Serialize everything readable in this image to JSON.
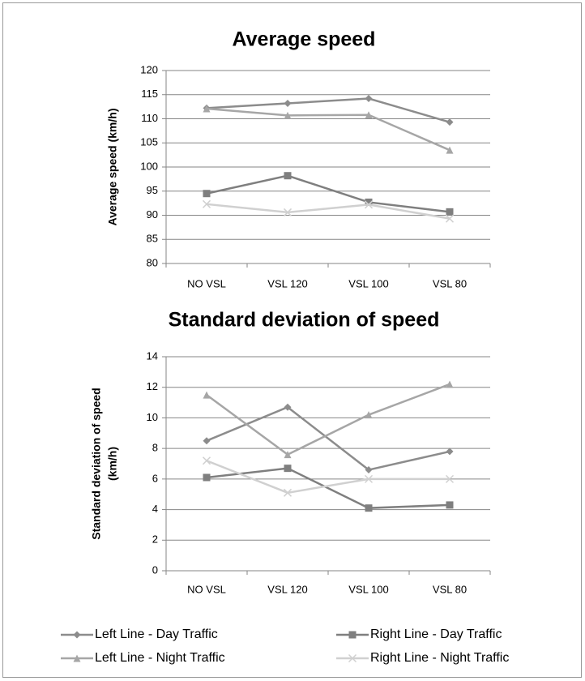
{
  "chart_data": [
    {
      "type": "line",
      "title": "Average speed",
      "ylabel": [
        "Average speed (km/h)"
      ],
      "categories": [
        "NO VSL",
        "VSL 120",
        "VSL 100",
        "VSL 80"
      ],
      "ylim": [
        80,
        120
      ],
      "yticks": [
        80,
        85,
        90,
        95,
        100,
        105,
        110,
        115,
        120
      ],
      "grid": true,
      "series": [
        {
          "name": "Left Line - Day Traffic",
          "color": "#8c8c8c",
          "marker": "diamond",
          "values": [
            112.2,
            113.2,
            114.2,
            109.3
          ]
        },
        {
          "name": "Right Line - Day Traffic",
          "color": "#7f7f7f",
          "marker": "square",
          "values": [
            94.5,
            98.2,
            92.7,
            90.7
          ]
        },
        {
          "name": "Left Line - Night Traffic",
          "color": "#a6a6a6",
          "marker": "triangle",
          "values": [
            112.1,
            110.7,
            110.8,
            103.5
          ]
        },
        {
          "name": "Right Line - Night Traffic",
          "color": "#d0d0d0",
          "marker": "x",
          "values": [
            92.3,
            90.6,
            92.2,
            89.3
          ]
        }
      ]
    },
    {
      "type": "line",
      "title": "Standard deviation of speed",
      "ylabel": [
        "Standard deviation of speed",
        "(km/h)"
      ],
      "categories": [
        "NO VSL",
        "VSL 120",
        "VSL 100",
        "VSL 80"
      ],
      "ylim": [
        0,
        14
      ],
      "yticks": [
        0,
        2,
        4,
        6,
        8,
        10,
        12,
        14
      ],
      "grid": true,
      "series": [
        {
          "color": "#8c8c8c",
          "marker": "diamond",
          "values": [
            8.5,
            10.7,
            6.6,
            7.8
          ]
        },
        {
          "color": "#7f7f7f",
          "marker": "square",
          "values": [
            6.1,
            6.7,
            4.1,
            4.3
          ]
        },
        {
          "color": "#a6a6a6",
          "marker": "triangle",
          "values": [
            11.5,
            7.6,
            10.2,
            12.2
          ]
        },
        {
          "color": "#d0d0d0",
          "marker": "x",
          "values": [
            7.2,
            5.1,
            6.0,
            6.0
          ]
        }
      ]
    }
  ]
}
